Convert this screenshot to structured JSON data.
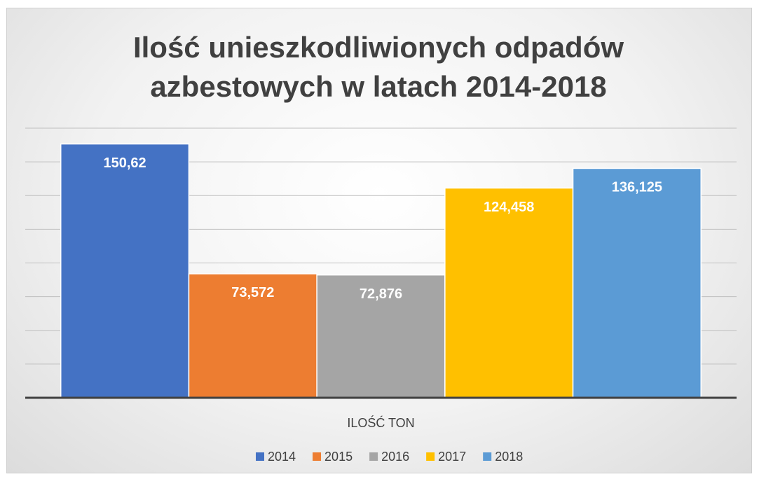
{
  "chart_data": {
    "type": "bar",
    "title": "Ilość unieszkodliwionych odpadów azbestowych w latach 2014-2018",
    "categories": [
      "ILOŚĆ TON"
    ],
    "series": [
      {
        "name": "2014",
        "color": "#4472c4",
        "values": [
          150.62
        ],
        "value_labels": [
          "150,62"
        ]
      },
      {
        "name": "2015",
        "color": "#ed7d31",
        "values": [
          73.572
        ],
        "value_labels": [
          "73,572"
        ]
      },
      {
        "name": "2016",
        "color": "#a5a5a5",
        "values": [
          72.876
        ],
        "value_labels": [
          "72,876"
        ]
      },
      {
        "name": "2017",
        "color": "#ffc000",
        "values": [
          124.458
        ],
        "value_labels": [
          "124,458"
        ]
      },
      {
        "name": "2018",
        "color": "#5b9bd5",
        "values": [
          136.125
        ],
        "value_labels": [
          "136,125"
        ]
      }
    ],
    "ylim": [
      0,
      160
    ],
    "yticks": [
      0,
      20,
      40,
      60,
      80,
      100,
      120,
      140,
      160
    ],
    "grid": true
  }
}
